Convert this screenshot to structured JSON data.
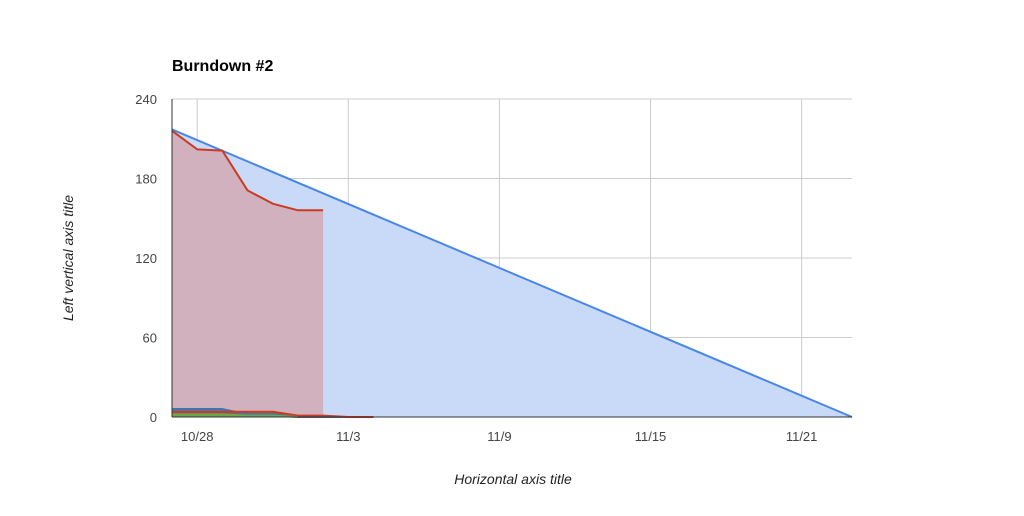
{
  "chart_data": {
    "type": "area",
    "title": "Burndown #2",
    "xlabel": "Horizontal axis title",
    "ylabel": "Left vertical axis title",
    "x_tick_labels": [
      "10/28",
      "11/3",
      "11/9",
      "11/15",
      "11/21"
    ],
    "x_tick_days": [
      1,
      7,
      13,
      19,
      25
    ],
    "xlim_days": [
      0,
      27
    ],
    "ylim": [
      0,
      240
    ],
    "y_ticks": [
      0,
      60,
      120,
      180,
      240
    ],
    "grid": true,
    "legend": "none",
    "series": [
      {
        "color": "#4a86e8",
        "fill": "#c9daf8",
        "x": [
          0,
          27
        ],
        "values": [
          217,
          0
        ]
      },
      {
        "color": "#cc3a21",
        "fill": "#d2a9b3",
        "x": [
          0,
          1,
          2,
          3,
          4,
          5,
          6
        ],
        "values": [
          216,
          202,
          201,
          171,
          161,
          156,
          156
        ]
      },
      {
        "color": "#3d78b5",
        "fill": "#3d78b5",
        "x": [
          0,
          1,
          2,
          3,
          4,
          5,
          6,
          7
        ],
        "values": [
          6,
          6,
          6,
          2,
          2,
          0,
          0,
          0
        ]
      },
      {
        "color": "#cc3a21",
        "fill": "#8f5a55",
        "x": [
          0,
          1,
          2,
          3,
          4,
          5,
          6,
          7,
          8
        ],
        "values": [
          4,
          4,
          4,
          4,
          4,
          1,
          1,
          0,
          0
        ]
      },
      {
        "color": "#6aa84f",
        "fill": "#6aa84f",
        "x": [
          0,
          1,
          2,
          3,
          4,
          5
        ],
        "values": [
          2,
          2,
          2,
          1,
          1,
          0
        ]
      }
    ]
  }
}
